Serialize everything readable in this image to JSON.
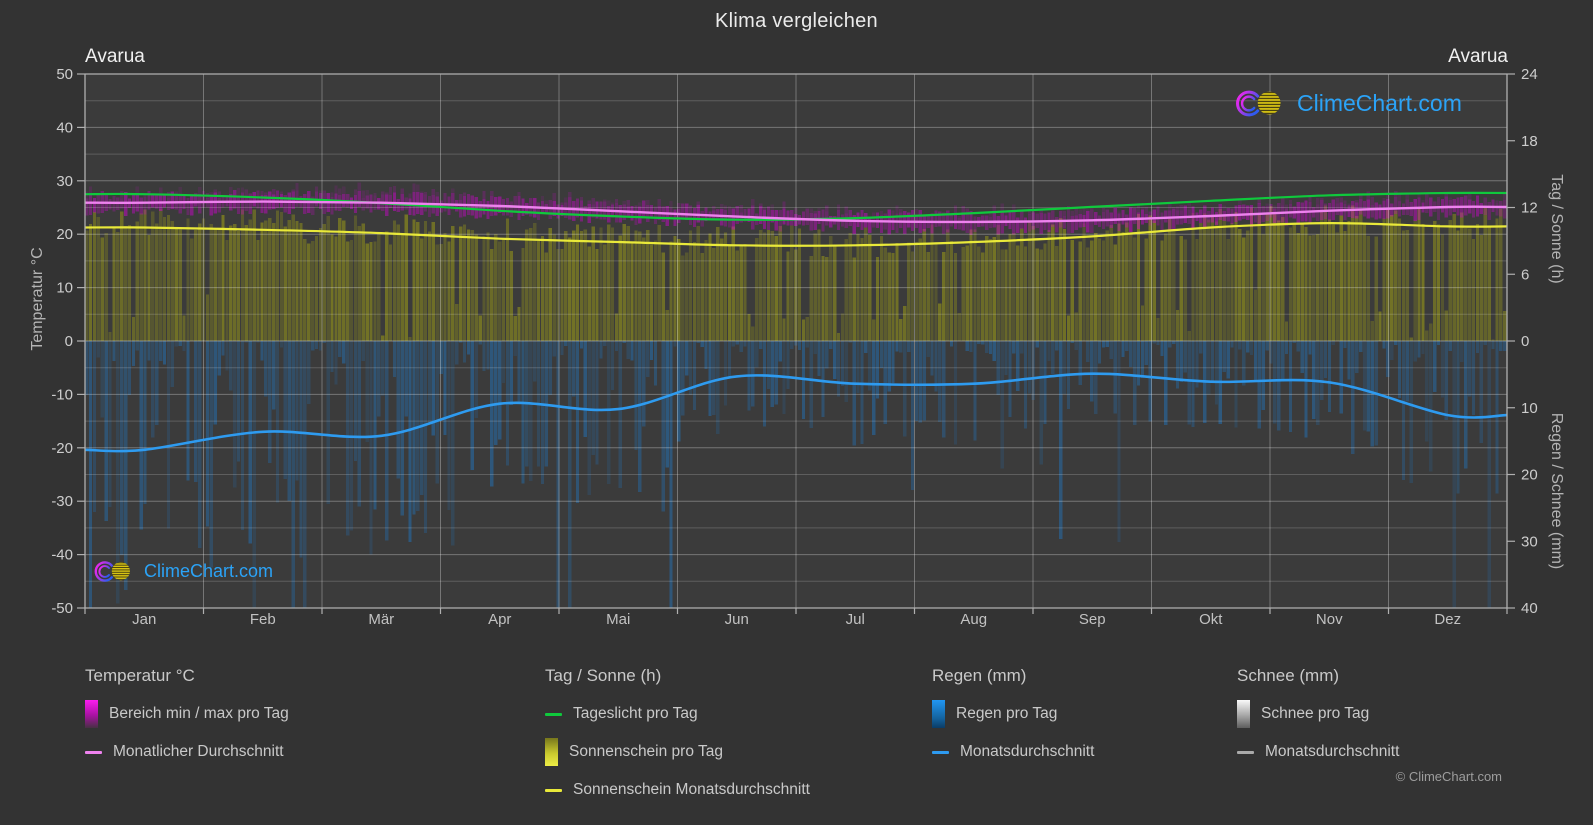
{
  "title": "Klima vergleichen",
  "stations": {
    "left": "Avarua",
    "right": "Avarua"
  },
  "watermark": {
    "text": "ClimeChart.com"
  },
  "copyright": "© ClimeChart.com",
  "axes": {
    "left": {
      "label": "Temperatur °C",
      "ticks": [
        50,
        40,
        30,
        20,
        10,
        0,
        -10,
        -20,
        -30,
        -40,
        -50
      ],
      "range": [
        -50,
        50
      ]
    },
    "right_sun": {
      "label": "Tag / Sonne (h)",
      "ticks": [
        24,
        18,
        12,
        6,
        0
      ],
      "range": [
        0,
        24
      ]
    },
    "right_rain": {
      "label": "Regen / Schnee (mm)",
      "ticks": [
        10,
        20,
        30,
        40
      ],
      "range": [
        0,
        40
      ]
    }
  },
  "months": [
    "Jan",
    "Feb",
    "Mär",
    "Apr",
    "Mai",
    "Jun",
    "Jul",
    "Aug",
    "Sep",
    "Okt",
    "Nov",
    "Dez"
  ],
  "chart_data": {
    "type": "composite-climate (daily bars + monthly average lines)",
    "x_categories": [
      "Jan",
      "Feb",
      "Mär",
      "Apr",
      "Mai",
      "Jun",
      "Jul",
      "Aug",
      "Sep",
      "Okt",
      "Nov",
      "Dez"
    ],
    "grid": "on",
    "series": [
      {
        "id": "daylight_h",
        "name": "Tageslicht pro Tag",
        "type": "line",
        "axis": "right_sun",
        "unit": "h",
        "values": [
          13.2,
          12.9,
          12.4,
          11.7,
          11.2,
          10.9,
          11.05,
          11.5,
          12.05,
          12.6,
          13.1,
          13.3
        ]
      },
      {
        "id": "temp_avg_c",
        "name": "Monatlicher Durchschnitt",
        "type": "line",
        "axis": "left",
        "unit": "°C",
        "values": [
          25.9,
          26.1,
          25.9,
          25.3,
          24.3,
          23.3,
          22.5,
          22.3,
          22.6,
          23.4,
          24.4,
          25.1
        ]
      },
      {
        "id": "temp_range_c",
        "name": "Bereich min / max pro Tag",
        "type": "daily-band",
        "axis": "left",
        "unit": "°C",
        "max": [
          27.4,
          27.6,
          27.4,
          26.8,
          25.8,
          24.8,
          24.0,
          23.8,
          24.1,
          24.9,
          25.9,
          26.6
        ],
        "min": [
          24.1,
          24.3,
          24.1,
          23.5,
          22.5,
          21.5,
          20.7,
          20.5,
          20.8,
          21.6,
          22.6,
          23.3
        ]
      },
      {
        "id": "sunshine_avg_h",
        "name": "Sonnenschein Monatsdurchschnitt",
        "type": "line",
        "axis": "right_sun",
        "unit": "h",
        "values": [
          10.2,
          10.0,
          9.7,
          9.2,
          8.9,
          8.6,
          8.6,
          8.9,
          9.4,
          10.2,
          10.6,
          10.3
        ]
      },
      {
        "id": "sunshine_daily_h",
        "name": "Sonnenschein pro Tag",
        "type": "daily-bars",
        "axis": "right_sun",
        "unit": "h",
        "monthly_mean": [
          10.2,
          10.0,
          9.7,
          9.2,
          8.9,
          8.6,
          8.6,
          8.9,
          9.4,
          10.2,
          10.6,
          10.3
        ]
      },
      {
        "id": "rain_avg_mm",
        "name": "Monatsdurchschnitt",
        "type": "line",
        "axis": "right_rain",
        "unit": "mm",
        "values": [
          16.3,
          13.6,
          14.2,
          9.4,
          10.2,
          5.3,
          6.4,
          6.4,
          4.9,
          6.1,
          6.2,
          11.1
        ]
      },
      {
        "id": "rain_daily_mm",
        "name": "Regen pro Tag",
        "type": "daily-bars",
        "axis": "right_rain",
        "unit": "mm",
        "monthly_mean": [
          16.3,
          13.6,
          14.2,
          9.4,
          10.2,
          5.3,
          6.4,
          6.4,
          4.9,
          6.1,
          6.2,
          11.1
        ]
      },
      {
        "id": "snow_daily_mm",
        "name": "Schnee pro Tag",
        "type": "daily-bars",
        "axis": "right_rain",
        "unit": "mm",
        "monthly_mean": [
          0,
          0,
          0,
          0,
          0,
          0,
          0,
          0,
          0,
          0,
          0,
          0
        ]
      },
      {
        "id": "snow_avg_mm",
        "name": "Monatsdurchschnitt",
        "type": "line",
        "axis": "right_rain",
        "unit": "mm",
        "values": [
          0,
          0,
          0,
          0,
          0,
          0,
          0,
          0,
          0,
          0,
          0,
          0
        ]
      }
    ]
  },
  "colors": {
    "background": "#333333",
    "plot_background": "#3b3b3b",
    "daylight_line": "#0fc93c",
    "temperature_band": "#d800d8",
    "temperature_avg_line": "#ee82ee",
    "sunshine_bars": "#d9d900",
    "sunshine_avg_line": "#e9e93a",
    "rain_bars": "#1d7fd4",
    "rain_avg_line": "#2e9bf0",
    "snow_bars": "#e8e8e8",
    "snow_avg_line": "#aaaaaa",
    "watermark_blue": "#2ba3f7",
    "tick_text": "#cdcdcd",
    "month_text": "#c2c2c2"
  },
  "legend": {
    "groups": [
      {
        "title": "Temperatur °C",
        "items": [
          {
            "swatch": "temp",
            "label": "Bereich min / max pro Tag"
          },
          {
            "swatch": "line",
            "color": "#ee82ee",
            "label": "Monatlicher Durchschnitt"
          }
        ]
      },
      {
        "title": "Tag / Sonne (h)",
        "items": [
          {
            "swatch": "line",
            "color": "#0fc93c",
            "label": "Tageslicht pro Tag"
          },
          {
            "swatch": "sun",
            "label": "Sonnenschein pro Tag"
          },
          {
            "swatch": "line",
            "color": "#e9e93a",
            "label": "Sonnenschein Monatsdurchschnitt"
          }
        ]
      },
      {
        "title": "Regen (mm)",
        "items": [
          {
            "swatch": "rain",
            "label": "Regen pro Tag"
          },
          {
            "swatch": "line",
            "color": "#2e9bf0",
            "label": "Monatsdurchschnitt"
          }
        ]
      },
      {
        "title": "Schnee (mm)",
        "items": [
          {
            "swatch": "snow",
            "label": "Schnee pro Tag"
          },
          {
            "swatch": "line",
            "color": "#aaaaaa",
            "label": "Monatsdurchschnitt"
          }
        ]
      }
    ]
  }
}
